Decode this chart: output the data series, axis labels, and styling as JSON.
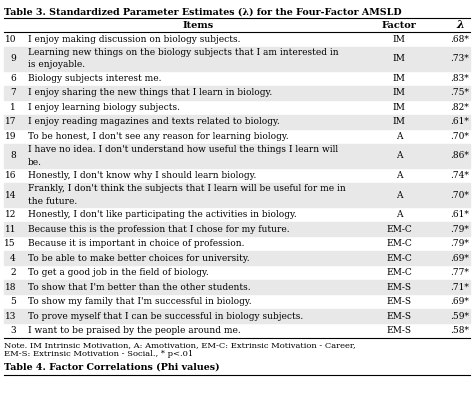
{
  "title": "Table 3. Standardized Parameter Estimates (λ) for the Four-Factor AMSLD",
  "rows": [
    [
      "10",
      "I enjoy making discussion on biology subjects.",
      "IM",
      ".68*"
    ],
    [
      "9",
      "Learning new things on the biology subjects that I am interested in\nis enjoyable.",
      "IM",
      ".73*"
    ],
    [
      "6",
      "Biology subjects interest me.",
      "IM",
      ".83*"
    ],
    [
      "7",
      "I enjoy sharing the new things that I learn in biology.",
      "IM",
      ".75*"
    ],
    [
      "1",
      "I enjoy learning biology subjects.",
      "IM",
      ".82*"
    ],
    [
      "17",
      "I enjoy reading magazines and texts related to biology.",
      "IM",
      ".61*"
    ],
    [
      "19",
      "To be honest, I don't see any reason for learning biology.",
      "A",
      ".70*"
    ],
    [
      "8",
      "I have no idea. I don't understand how useful the things I learn will\nbe.",
      "A",
      ".86*"
    ],
    [
      "16",
      "Honestly, I don't know why I should learn biology.",
      "A",
      ".74*"
    ],
    [
      "14",
      "Frankly, I don't think the subjects that I learn will be useful for me in\nthe future.",
      "A",
      ".70*"
    ],
    [
      "12",
      "Honestly, I don't like participating the activities in biology.",
      "A",
      ".61*"
    ],
    [
      "11",
      "Because this is the profession that I chose for my future.",
      "EM-C",
      ".79*"
    ],
    [
      "15",
      "Because it is important in choice of profession.",
      "EM-C",
      ".79*"
    ],
    [
      "4",
      "To be able to make better choices for university.",
      "EM-C",
      ".69*"
    ],
    [
      "2",
      "To get a good job in the field of biology.",
      "EM-C",
      ".77*"
    ],
    [
      "18",
      "To show that I'm better than the other students.",
      "EM-S",
      ".71*"
    ],
    [
      "5",
      "To show my family that I'm successful in biology.",
      "EM-S",
      ".69*"
    ],
    [
      "13",
      "To prove myself that I can be successful in biology subjects.",
      "EM-S",
      ".59*"
    ],
    [
      "3",
      "I want to be praised by the people around me.",
      "EM-S",
      ".58*"
    ]
  ],
  "note_line1": "Note. IM Intrinsic Motivation, A: Amotivation, EM-C: Extrinsic Motivation - Career,",
  "note_line2": "EM-S: Extrinsic Motivation - Social., * p<.01",
  "table4_title": "Table 4. Factor Correlations (Phi values)",
  "bg_color": "#ffffff",
  "text_color": "#000000",
  "font_size": 6.5,
  "header_font_size": 7.0,
  "title_font_size": 6.8
}
